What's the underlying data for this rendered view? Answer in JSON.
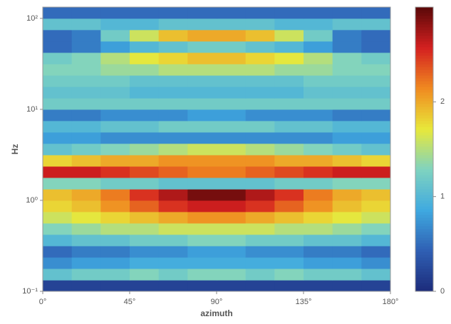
{
  "chart_data": {
    "type": "heatmap",
    "x_label": "azimuth",
    "y_label": "Hz",
    "xedges": [
      0,
      15,
      30,
      45,
      60,
      75,
      90,
      105,
      120,
      135,
      150,
      165,
      180
    ],
    "yedges": [
      0.1,
      0.133,
      0.178,
      0.237,
      0.316,
      0.422,
      0.562,
      0.75,
      1,
      1.33,
      1.78,
      2.37,
      3.16,
      4.22,
      5.62,
      7.5,
      10,
      13.3,
      17.8,
      23.7,
      31.6,
      42.2,
      56.2,
      75,
      100,
      133
    ],
    "xlim": [
      0,
      180
    ],
    "ylim": [
      0.1,
      133
    ],
    "ylog": true,
    "xticks": [
      {
        "value": 0,
        "label": "0°"
      },
      {
        "value": 45,
        "label": "45°"
      },
      {
        "value": 90,
        "label": "90°"
      },
      {
        "value": 135,
        "label": "135°"
      },
      {
        "value": 180,
        "label": "180°"
      }
    ],
    "yticks": [
      {
        "value": 0.1,
        "label": "10⁻¹"
      },
      {
        "value": 1,
        "label": "10⁰"
      },
      {
        "value": 10,
        "label": "10¹"
      },
      {
        "value": 100,
        "label": "10²"
      }
    ],
    "clim": [
      0,
      3
    ],
    "colorbar_ticks": [
      0,
      1,
      2
    ],
    "colormap": [
      "#1c2b7a",
      "#2f5fb3",
      "#3fa9e0",
      "#7fd3c0",
      "#e8e83a",
      "#f08a20",
      "#d42020",
      "#5a0808"
    ],
    "values": [
      [
        0.2,
        0.2,
        0.2,
        0.2,
        0.2,
        0.2,
        0.2,
        0.2,
        0.2,
        0.2,
        0.2,
        0.2
      ],
      [
        1.1,
        1.2,
        1.2,
        1.3,
        1.2,
        1.3,
        1.3,
        1.2,
        1.3,
        1.2,
        1.2,
        1.1
      ],
      [
        0.7,
        0.8,
        0.8,
        0.9,
        0.9,
        0.9,
        0.9,
        0.9,
        0.9,
        0.8,
        0.8,
        0.7
      ],
      [
        0.5,
        0.6,
        0.6,
        0.7,
        0.7,
        0.8,
        0.8,
        0.7,
        0.7,
        0.6,
        0.6,
        0.5
      ],
      [
        1.0,
        1.1,
        1.1,
        1.2,
        1.2,
        1.3,
        1.3,
        1.2,
        1.2,
        1.1,
        1.1,
        1.0
      ],
      [
        1.3,
        1.4,
        1.5,
        1.5,
        1.6,
        1.6,
        1.6,
        1.6,
        1.5,
        1.5,
        1.4,
        1.3
      ],
      [
        1.6,
        1.7,
        1.8,
        1.9,
        2.0,
        2.1,
        2.1,
        2.0,
        1.9,
        1.8,
        1.7,
        1.6
      ],
      [
        1.8,
        1.9,
        2.1,
        2.3,
        2.5,
        2.6,
        2.6,
        2.5,
        2.3,
        2.1,
        1.9,
        1.8
      ],
      [
        1.9,
        2.0,
        2.2,
        2.5,
        2.7,
        2.9,
        2.9,
        2.7,
        2.5,
        2.2,
        2.0,
        1.9
      ],
      [
        1.3,
        1.3,
        1.2,
        1.2,
        1.1,
        1.1,
        1.1,
        1.1,
        1.2,
        1.2,
        1.3,
        1.3
      ],
      [
        2.6,
        2.6,
        2.5,
        2.4,
        2.3,
        2.2,
        2.2,
        2.3,
        2.4,
        2.5,
        2.6,
        2.6
      ],
      [
        1.8,
        1.9,
        2.0,
        2.0,
        2.1,
        2.1,
        2.1,
        2.1,
        2.0,
        2.0,
        1.9,
        1.8
      ],
      [
        1.1,
        1.2,
        1.3,
        1.4,
        1.5,
        1.6,
        1.6,
        1.5,
        1.4,
        1.3,
        1.2,
        1.1
      ],
      [
        0.8,
        0.8,
        0.7,
        0.7,
        0.7,
        0.7,
        0.7,
        0.7,
        0.7,
        0.7,
        0.8,
        0.8
      ],
      [
        1.0,
        1.0,
        1.1,
        1.1,
        1.2,
        1.2,
        1.2,
        1.2,
        1.1,
        1.1,
        1.0,
        1.0
      ],
      [
        0.6,
        0.6,
        0.7,
        0.7,
        0.7,
        0.8,
        0.8,
        0.7,
        0.7,
        0.7,
        0.6,
        0.6
      ],
      [
        1.2,
        1.2,
        1.2,
        1.2,
        1.2,
        1.2,
        1.2,
        1.2,
        1.2,
        1.2,
        1.2,
        1.2
      ],
      [
        1.1,
        1.1,
        1.1,
        1.0,
        1.0,
        1.0,
        1.0,
        1.0,
        1.0,
        1.1,
        1.1,
        1.1
      ],
      [
        1.2,
        1.2,
        1.2,
        1.1,
        1.1,
        1.1,
        1.1,
        1.1,
        1.1,
        1.2,
        1.2,
        1.2
      ],
      [
        1.3,
        1.3,
        1.4,
        1.4,
        1.5,
        1.5,
        1.5,
        1.5,
        1.4,
        1.4,
        1.3,
        1.3
      ],
      [
        1.2,
        1.3,
        1.5,
        1.7,
        1.8,
        1.9,
        1.9,
        1.8,
        1.7,
        1.5,
        1.3,
        1.2
      ],
      [
        0.5,
        0.6,
        0.8,
        1.0,
        1.1,
        1.2,
        1.2,
        1.1,
        1.0,
        0.8,
        0.6,
        0.5
      ],
      [
        0.5,
        0.6,
        1.2,
        1.6,
        1.9,
        2.0,
        2.0,
        1.9,
        1.6,
        1.2,
        0.6,
        0.5
      ],
      [
        1.1,
        1.1,
        1.0,
        1.0,
        1.1,
        1.1,
        1.1,
        1.1,
        1.0,
        1.0,
        1.1,
        1.1
      ],
      [
        0.5,
        0.5,
        0.5,
        0.5,
        0.5,
        0.5,
        0.5,
        0.5,
        0.5,
        0.5,
        0.5,
        0.5
      ]
    ]
  }
}
